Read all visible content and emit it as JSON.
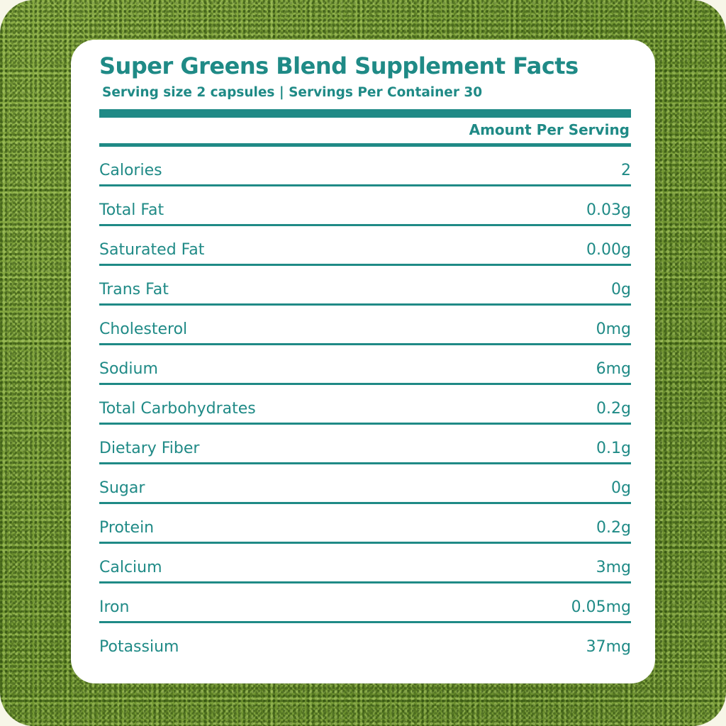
{
  "label": {
    "title": "Super Greens Blend Supplement Facts",
    "serving_info": "Serving size 2 capsules | Servings Per Container 30",
    "amount_header": "Amount Per Serving",
    "rows": [
      {
        "nutrient": "Calories",
        "amount": "2"
      },
      {
        "nutrient": "Total Fat",
        "amount": "0.03g"
      },
      {
        "nutrient": "Saturated Fat",
        "amount": "0.00g"
      },
      {
        "nutrient": "Trans Fat",
        "amount": "0g"
      },
      {
        "nutrient": "Cholesterol",
        "amount": "0mg"
      },
      {
        "nutrient": "Sodium",
        "amount": "6mg"
      },
      {
        "nutrient": "Total Carbohydrates",
        "amount": "0.2g"
      },
      {
        "nutrient": "Dietary Fiber",
        "amount": "0.1g"
      },
      {
        "nutrient": "Sugar",
        "amount": "0g"
      },
      {
        "nutrient": "Protein",
        "amount": "0.2g"
      },
      {
        "nutrient": "Calcium",
        "amount": "3mg"
      },
      {
        "nutrient": "Iron",
        "amount": "0.05mg"
      },
      {
        "nutrient": "Potassium",
        "amount": "37mg"
      }
    ]
  },
  "colors": {
    "accent": "#1f8a86",
    "card_background": "#ffffff",
    "background": "#7fa23a"
  }
}
